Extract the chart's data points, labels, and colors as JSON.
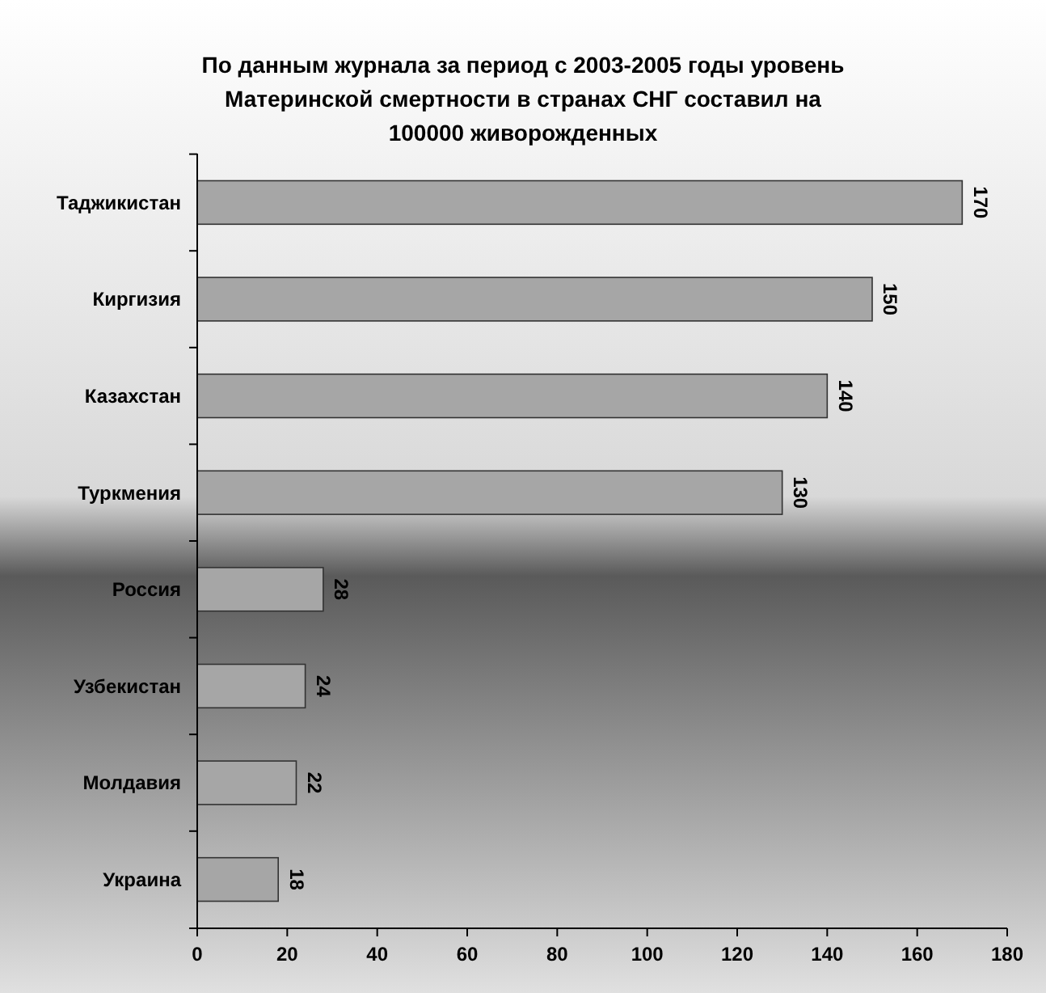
{
  "chart_data": {
    "type": "bar",
    "orientation": "horizontal",
    "title": "По данным журнала за период с 2003-2005 годы уровень Материнской смертности в странах СНГ составил на 100000 живорожденных",
    "categories": [
      "Таджикистан",
      "Киргизия",
      "Казахстан",
      "Туркмения",
      "Россия",
      "Узбекистан",
      "Молдавия",
      "Украина"
    ],
    "values": [
      170,
      150,
      140,
      130,
      28,
      24,
      22,
      18
    ],
    "color": "#a6a6a6",
    "xlim": [
      0,
      180
    ],
    "xticks": [
      0,
      20,
      40,
      60,
      80,
      100,
      120,
      140,
      160,
      180
    ],
    "grid": false,
    "data_labels": true
  }
}
